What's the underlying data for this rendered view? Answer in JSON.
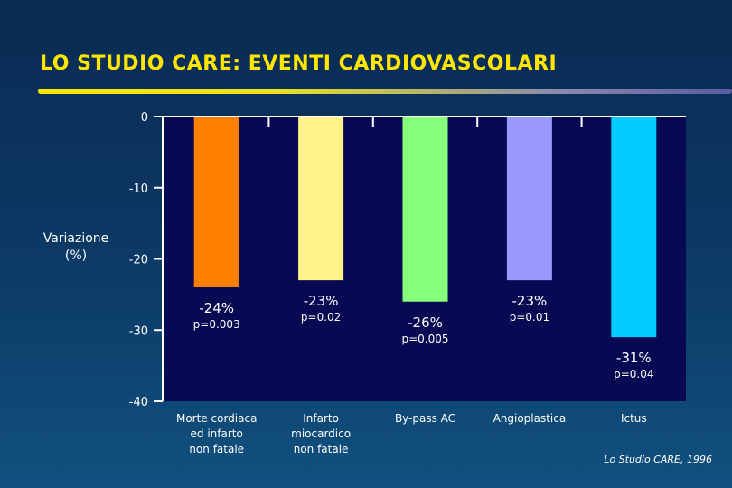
{
  "slide": {
    "title": "LO STUDIO CARE: EVENTI CARDIOVASCOLARI",
    "source": "Lo Studio CARE, 1996",
    "colors": {
      "title": "#ffe600",
      "background": "#0c3a66",
      "plot_area": "#070a52"
    }
  },
  "chart_data": {
    "type": "bar",
    "title": "LO STUDIO CARE: EVENTI CARDIOVASCOLARI",
    "ylabel": [
      "Variazione",
      "(%)"
    ],
    "xlabel": "",
    "ylim": [
      -40,
      0
    ],
    "yticks": [
      0,
      -10,
      -20,
      -30,
      -40
    ],
    "grid": false,
    "categories": [
      [
        "Morte cordiaca",
        "ed infarto",
        "non fatale"
      ],
      [
        "Infarto",
        "miocardico",
        "non fatale"
      ],
      [
        "By-pass AC"
      ],
      [
        "Angioplastica"
      ],
      [
        "Ictus"
      ]
    ],
    "values": [
      -24,
      -23,
      -26,
      -23,
      -31
    ],
    "value_labels": [
      "-24%",
      "-23%",
      "-26%",
      "-23%",
      "-31%"
    ],
    "p_values": [
      "p=0.003",
      "p=0.02",
      "p=0.005",
      "p=0.01",
      "p=0.04"
    ],
    "bar_colors": [
      "#ff7f00",
      "#fff28a",
      "#88ff7a",
      "#9898ff",
      "#00ccff"
    ]
  }
}
